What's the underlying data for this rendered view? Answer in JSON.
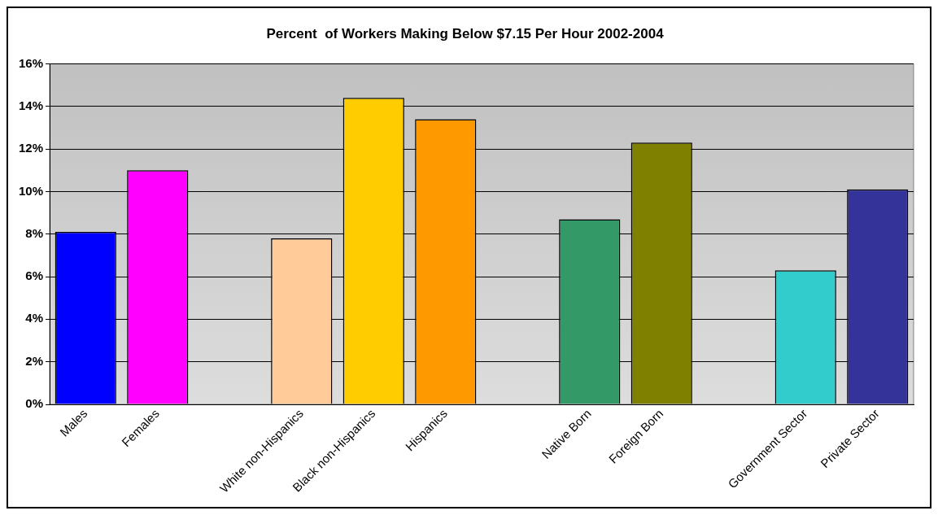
{
  "chart_data": {
    "type": "bar",
    "title": "Percent  of Workers Making Below $7.15 Per Hour 2002-2004",
    "categories": [
      "Males",
      "Females",
      null,
      "White non-Hispanics",
      "Black non-Hispanics",
      "Hispanics",
      null,
      "Native Born",
      "Foreign Born",
      null,
      "Government Sector",
      "Private Sector"
    ],
    "values": [
      8.1,
      11.0,
      null,
      7.8,
      14.4,
      13.4,
      null,
      8.7,
      12.3,
      null,
      6.3,
      10.1
    ],
    "colors": [
      "#0000ff",
      "#ff00ff",
      "#ffffff",
      "#ffcc99",
      "#ffcc00",
      "#ff9900",
      "#ffffff",
      "#339966",
      "#808000",
      "#ffffff",
      "#33cccc",
      "#333399"
    ],
    "ylim": [
      0,
      16
    ],
    "yticks": [
      {
        "value": 0,
        "label": "0%"
      },
      {
        "value": 2,
        "label": "2%"
      },
      {
        "value": 4,
        "label": "4%"
      },
      {
        "value": 6,
        "label": "6%"
      },
      {
        "value": 8,
        "label": "8%"
      },
      {
        "value": 10,
        "label": "10%"
      },
      {
        "value": 12,
        "label": "12%"
      },
      {
        "value": 14,
        "label": "14%"
      },
      {
        "value": 16,
        "label": "16%"
      }
    ],
    "grid": "y",
    "legend": false
  }
}
